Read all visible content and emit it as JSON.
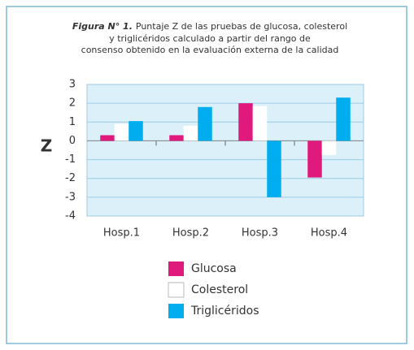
{
  "chart_data": {
    "type": "bar",
    "title_prefix": "Figura N° 1.",
    "title": [
      "Puntaje Z de las pruebas de glucosa, colesterol",
      "y triglicéridos calculado a partir del rango de",
      "consenso obtenido en la evaluación externa de la calidad"
    ],
    "y_label": "Z",
    "categories": [
      "Hosp.1",
      "Hosp.2",
      "Hosp.3",
      "Hosp.4"
    ],
    "series": [
      {
        "name": "Glucosa",
        "color": "#e0197d",
        "values": [
          0.3,
          0.3,
          2.0,
          -1.95
        ]
      },
      {
        "name": "Colesterol",
        "color": "#ffffff",
        "values": [
          0.9,
          0.8,
          1.85,
          -0.75
        ]
      },
      {
        "name": "Triglicéridos",
        "color": "#00aeef",
        "values": [
          1.05,
          1.8,
          -3.0,
          2.3
        ]
      }
    ],
    "ylim": [
      -4,
      3
    ],
    "yticks": [
      -4,
      -3,
      -2,
      -1,
      0,
      1,
      2,
      3
    ],
    "grid": true
  }
}
